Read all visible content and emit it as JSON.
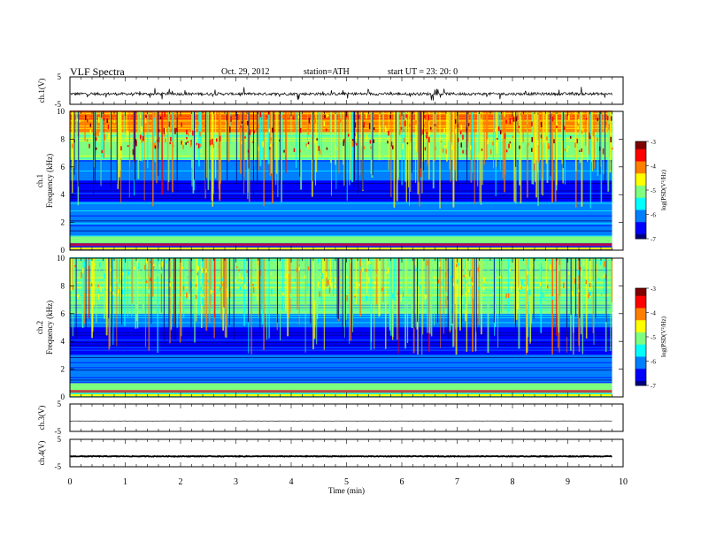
{
  "header": {
    "title": "VLF Spectra",
    "date": "Oct. 29, 2012",
    "station": "station=ATH",
    "start": "start  UT  =   23: 20: 0"
  },
  "x_axis": {
    "label": "Time  (min)",
    "range": [
      0,
      10
    ],
    "ticks": [
      "0",
      "1",
      "2",
      "3",
      "4",
      "5",
      "6",
      "7",
      "8",
      "9",
      "10"
    ]
  },
  "colorbar": {
    "label": "log(PSD(V²/Hz)",
    "ticks": [
      "-3",
      "-4",
      "-5",
      "-6",
      "-7"
    ],
    "range": [
      -7,
      -3
    ]
  },
  "colors": {
    "jet": [
      "#00007f",
      "#0000ff",
      "#007fff",
      "#00ffff",
      "#7fff7f",
      "#ffff00",
      "#ff7f00",
      "#ff0000",
      "#7f0000"
    ]
  },
  "chart_data": [
    {
      "type": "line",
      "panel": "ch1-timeseries",
      "ylabel": "ch.1(V)",
      "ylim": [
        -5,
        5
      ],
      "yticks": [
        "5",
        "-5"
      ],
      "x_range_min": [
        0,
        9.8
      ],
      "description_values": {
        "baseline_V": -1.2,
        "spike_amplitude_V": 1.5
      }
    },
    {
      "type": "heatmap",
      "panel": "ch1-spectrogram",
      "ylabel_top": "ch.1",
      "ylabel": "Frequency  (kHz)",
      "ylim": [
        0,
        10
      ],
      "yticks": [
        "10",
        "8",
        "6",
        "4",
        "2",
        "0"
      ],
      "time_extent_min": [
        0,
        9.8
      ],
      "bands": [
        {
          "f_kHz": [
            0,
            0.5
          ],
          "logPSD": -6.5
        },
        {
          "f_kHz": [
            0.5,
            1.0
          ],
          "logPSD": -5.0
        },
        {
          "f_kHz": [
            1.0,
            3.5
          ],
          "logPSD": -6.2
        },
        {
          "f_kHz": [
            3.5,
            5.0
          ],
          "logPSD": -6.7
        },
        {
          "f_kHz": [
            5.0,
            6.5
          ],
          "logPSD": -5.8
        },
        {
          "f_kHz": [
            6.5,
            8.5
          ],
          "logPSD": -4.8
        },
        {
          "f_kHz": [
            8.5,
            10.0
          ],
          "logPSD": -4.0
        }
      ]
    },
    {
      "type": "heatmap",
      "panel": "ch2-spectrogram",
      "ylabel_top": "ch.2",
      "ylabel": "Frequency  (kHz)",
      "ylim": [
        0,
        10
      ],
      "yticks": [
        "10",
        "8",
        "6",
        "4",
        "2",
        "0"
      ],
      "time_extent_min": [
        0,
        9.8
      ],
      "bands": [
        {
          "f_kHz": [
            0,
            0.5
          ],
          "logPSD": -5.5
        },
        {
          "f_kHz": [
            0.5,
            1.0
          ],
          "logPSD": -5.0
        },
        {
          "f_kHz": [
            1.0,
            3.0
          ],
          "logPSD": -6.2
        },
        {
          "f_kHz": [
            3.0,
            5.0
          ],
          "logPSD": -6.6
        },
        {
          "f_kHz": [
            5.0,
            6.0
          ],
          "logPSD": -5.8
        },
        {
          "f_kHz": [
            6.0,
            10.0
          ],
          "logPSD": -5.2
        }
      ]
    },
    {
      "type": "line",
      "panel": "ch3-timeseries",
      "ylabel": "ch.3(V)",
      "ylim": [
        -5,
        5
      ],
      "yticks": [
        "5",
        "-5"
      ],
      "x_range_min": [
        0,
        9.8
      ],
      "description_values": {
        "baseline_V": -1.2
      }
    },
    {
      "type": "line",
      "panel": "ch4-timeseries",
      "ylabel": "ch.4(V)",
      "ylim": [
        -5,
        5
      ],
      "yticks": [
        "5",
        "-5"
      ],
      "x_range_min": [
        0,
        9.8
      ],
      "description_values": {
        "baseline_V": -1.2
      }
    }
  ]
}
